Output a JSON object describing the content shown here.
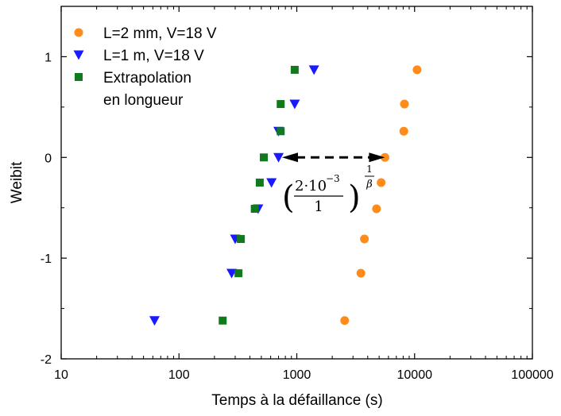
{
  "chart_data": {
    "type": "scatter",
    "title": "",
    "xlabel": "Temps à la défaillance (s)",
    "ylabel": "Weibit",
    "xscale": "log",
    "xlim": [
      10,
      100000
    ],
    "ylim": [
      -2,
      1.5
    ],
    "xticks": [
      10,
      100,
      1000,
      10000,
      100000
    ],
    "xtick_labels": [
      "10",
      "100",
      "1000",
      "10000",
      "100000"
    ],
    "yticks": [
      -2,
      -1,
      0,
      1
    ],
    "ytick_labels": [
      "-2",
      "-1",
      "0",
      "1"
    ],
    "grid": false,
    "legend_position": "top-left",
    "series": [
      {
        "name": "L=2 mm, V=18 V",
        "marker": "circle",
        "color": "#ff8c1a",
        "points": [
          {
            "x": 2550,
            "y": -1.62
          },
          {
            "x": 3500,
            "y": -1.15
          },
          {
            "x": 3750,
            "y": -0.81
          },
          {
            "x": 4750,
            "y": -0.51
          },
          {
            "x": 5200,
            "y": -0.25
          },
          {
            "x": 5600,
            "y": 0.0
          },
          {
            "x": 8100,
            "y": 0.26
          },
          {
            "x": 8200,
            "y": 0.53
          },
          {
            "x": 10500,
            "y": 0.87
          }
        ]
      },
      {
        "name": "L=1 m, V=18 V",
        "marker": "triangle-down",
        "color": "#1a1aff",
        "points": [
          {
            "x": 62,
            "y": -1.62
          },
          {
            "x": 280,
            "y": -1.15
          },
          {
            "x": 300,
            "y": -0.81
          },
          {
            "x": 470,
            "y": -0.51
          },
          {
            "x": 610,
            "y": -0.25
          },
          {
            "x": 700,
            "y": 0.0
          },
          {
            "x": 700,
            "y": 0.26
          },
          {
            "x": 960,
            "y": 0.53
          },
          {
            "x": 1400,
            "y": 0.87
          }
        ]
      },
      {
        "name": "Extrapolation\nen longueur",
        "legend_lines": [
          "Extrapolation",
          "en longueur"
        ],
        "marker": "square",
        "color": "#117a1c",
        "points": [
          {
            "x": 235,
            "y": -1.62
          },
          {
            "x": 320,
            "y": -1.15
          },
          {
            "x": 335,
            "y": -0.81
          },
          {
            "x": 440,
            "y": -0.51
          },
          {
            "x": 485,
            "y": -0.25
          },
          {
            "x": 525,
            "y": 0.0
          },
          {
            "x": 730,
            "y": 0.26
          },
          {
            "x": 730,
            "y": 0.53
          },
          {
            "x": 960,
            "y": 0.87
          }
        ]
      }
    ],
    "annotation": {
      "type": "double-arrow",
      "dashed": true,
      "from": {
        "x": 750,
        "y": 0.0
      },
      "to": {
        "x": 5600,
        "y": 0.0
      },
      "label_numerator": "2·10",
      "label_exponent": "−3",
      "label_denominator": "1",
      "label_power_num": "1",
      "label_power_den": "β",
      "label_lparen": "(",
      "label_rparen": ")"
    }
  }
}
